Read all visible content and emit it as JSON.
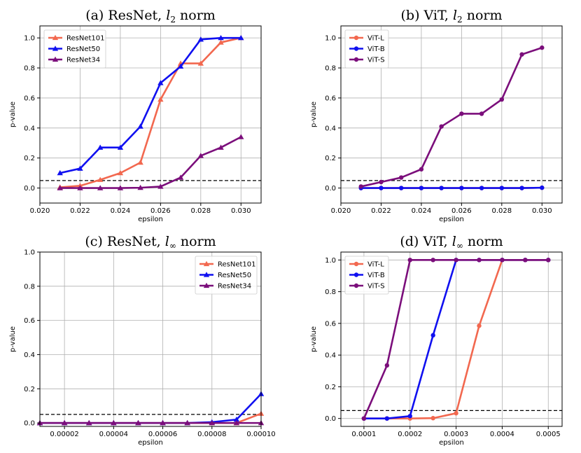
{
  "colors": {
    "ResNet101": "#f2684f",
    "ResNet50": "#1010f0",
    "ResNet34": "#7b0e7b",
    "ViT-L": "#f2684f",
    "ViT-B": "#1010f0",
    "ViT-S": "#7b0e7b",
    "grid": "#b0b0b0",
    "threshold": "#000000"
  },
  "chart_data": [
    {
      "type": "line",
      "title_prefix": "(a) ResNet, ",
      "title_math": "l",
      "title_sub": "2",
      "title_suffix": " norm",
      "xlabel": "epsilon",
      "ylabel": "p-value",
      "xlim": [
        0.02,
        0.031
      ],
      "ylim": [
        -0.1,
        1.08
      ],
      "xticks": [
        0.02,
        0.022,
        0.024,
        0.026,
        0.028,
        0.03
      ],
      "xtick_labels": [
        "0.020",
        "0.022",
        "0.024",
        "0.026",
        "0.028",
        "0.030"
      ],
      "yticks": [
        0.0,
        0.2,
        0.4,
        0.6,
        0.8,
        1.0
      ],
      "ytick_labels": [
        "0.0",
        "0.2",
        "0.4",
        "0.6",
        "0.8",
        "1.0"
      ],
      "threshold": 0.05,
      "legend_position": "top-left",
      "marker": "triangle",
      "x": [
        0.021,
        0.022,
        0.023,
        0.024,
        0.025,
        0.026,
        0.027,
        0.028,
        0.029,
        0.03
      ],
      "series": [
        {
          "name": "ResNet101",
          "values": [
            0.005,
            0.015,
            0.055,
            0.1,
            0.17,
            0.59,
            0.83,
            0.83,
            0.97,
            1.0
          ]
        },
        {
          "name": "ResNet50",
          "values": [
            0.1,
            0.13,
            0.27,
            0.27,
            0.41,
            0.7,
            0.81,
            0.99,
            1.0,
            1.0
          ]
        },
        {
          "name": "ResNet34",
          "values": [
            0.0,
            0.0,
            0.0,
            0.0,
            0.002,
            0.01,
            0.07,
            0.215,
            0.27,
            0.34
          ]
        }
      ]
    },
    {
      "type": "line",
      "title_prefix": "(b) ViT, ",
      "title_math": "l",
      "title_sub": "2",
      "title_suffix": " norm",
      "xlabel": "epsilon",
      "ylabel": "p-value",
      "xlim": [
        0.02,
        0.031
      ],
      "ylim": [
        -0.1,
        1.08
      ],
      "xticks": [
        0.02,
        0.022,
        0.024,
        0.026,
        0.028,
        0.03
      ],
      "xtick_labels": [
        "0.020",
        "0.022",
        "0.024",
        "0.026",
        "0.028",
        "0.030"
      ],
      "yticks": [
        0.0,
        0.2,
        0.4,
        0.6,
        0.8,
        1.0
      ],
      "ytick_labels": [
        "0.0",
        "0.2",
        "0.4",
        "0.6",
        "0.8",
        "1.0"
      ],
      "threshold": 0.05,
      "legend_position": "top-left",
      "marker": "circle",
      "x": [
        0.021,
        0.022,
        0.023,
        0.024,
        0.025,
        0.026,
        0.027,
        0.028,
        0.029,
        0.03
      ],
      "series": [
        {
          "name": "ViT-L",
          "values": [
            0.0,
            0.0,
            0.0,
            0.0,
            0.0,
            0.0,
            0.0,
            0.0,
            0.0,
            0.002
          ]
        },
        {
          "name": "ViT-B",
          "values": [
            0.0,
            0.0,
            0.0,
            0.0,
            0.0,
            0.0,
            0.0,
            0.0,
            0.0,
            0.002
          ]
        },
        {
          "name": "ViT-S",
          "values": [
            0.01,
            0.04,
            0.07,
            0.125,
            0.41,
            0.495,
            0.495,
            0.59,
            0.89,
            0.935
          ]
        }
      ]
    },
    {
      "type": "line",
      "title_prefix": "(c) ResNet, ",
      "title_math": "l",
      "title_sub": "∞",
      "title_suffix": " norm",
      "xlabel": "epsilon",
      "ylabel": "p-value",
      "xlim": [
        1e-05,
        0.0001
      ],
      "ylim": [
        -0.02,
        1.0
      ],
      "xticks": [
        2e-05,
        4e-05,
        6e-05,
        8e-05,
        0.0001
      ],
      "xtick_labels": [
        "0.00002",
        "0.00004",
        "0.00006",
        "0.00008",
        "0.00010"
      ],
      "yticks": [
        0.0,
        0.2,
        0.4,
        0.6,
        0.8,
        1.0
      ],
      "ytick_labels": [
        "0.0",
        "0.2",
        "0.4",
        "0.6",
        "0.8",
        "1.0"
      ],
      "threshold": 0.05,
      "legend_position": "top-right",
      "marker": "triangle",
      "x": [
        1e-05,
        2e-05,
        3e-05,
        4e-05,
        5e-05,
        6e-05,
        7e-05,
        8e-05,
        9e-05,
        0.0001
      ],
      "series": [
        {
          "name": "ResNet101",
          "values": [
            0.0,
            0.0,
            0.0,
            0.0,
            0.0,
            0.0,
            0.0,
            0.0,
            0.0,
            0.055
          ]
        },
        {
          "name": "ResNet50",
          "values": [
            0.0,
            0.0,
            0.0,
            0.0,
            0.0,
            0.0,
            0.0,
            0.005,
            0.02,
            0.17
          ]
        },
        {
          "name": "ResNet34",
          "values": [
            0.0,
            0.0,
            0.0,
            0.0,
            0.0,
            0.0,
            0.0,
            0.0,
            0.0,
            0.0
          ]
        }
      ]
    },
    {
      "type": "line",
      "title_prefix": "(d) ViT, ",
      "title_math": "l",
      "title_sub": "∞",
      "title_suffix": " norm",
      "xlabel": "epsilon",
      "ylabel": "p-value",
      "xlim": [
        5e-05,
        0.00053
      ],
      "ylim": [
        -0.05,
        1.05
      ],
      "xticks": [
        0.0001,
        0.0002,
        0.0003,
        0.0004,
        0.0005
      ],
      "xtick_labels": [
        "0.0001",
        "0.0002",
        "0.0003",
        "0.0004",
        "0.0005"
      ],
      "yticks": [
        0.0,
        0.2,
        0.4,
        0.6,
        0.8,
        1.0
      ],
      "ytick_labels": [
        "0.0",
        "0.2",
        "0.4",
        "0.6",
        "0.8",
        "1.0"
      ],
      "threshold": 0.05,
      "legend_position": "top-left",
      "marker": "circle",
      "x": [
        0.0001,
        0.00015,
        0.0002,
        0.00025,
        0.0003,
        0.00035,
        0.0004,
        0.00045,
        0.0005
      ],
      "series": [
        {
          "name": "ViT-L",
          "values": [
            0.0,
            0.0,
            0.0,
            0.002,
            0.033,
            0.585,
            1.0,
            1.0,
            1.0
          ]
        },
        {
          "name": "ViT-B",
          "values": [
            0.0,
            0.0,
            0.015,
            0.525,
            1.0,
            1.0,
            1.0,
            1.0,
            1.0
          ]
        },
        {
          "name": "ViT-S",
          "values": [
            0.0,
            0.335,
            1.0,
            1.0,
            1.0,
            1.0,
            1.0,
            1.0,
            1.0
          ]
        }
      ]
    }
  ]
}
